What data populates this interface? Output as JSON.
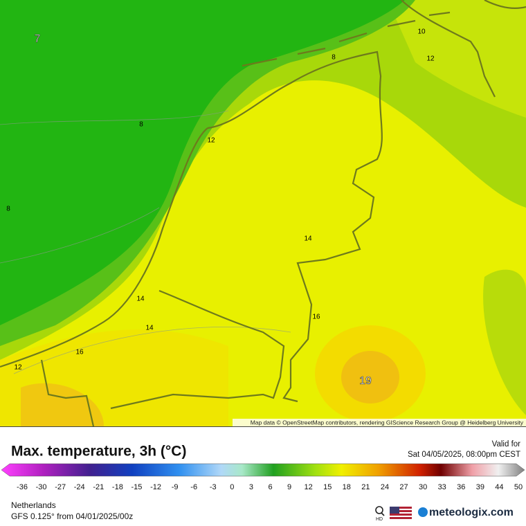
{
  "map": {
    "contour_labels": [
      "7",
      "8",
      "8",
      "8",
      "10",
      "12",
      "12",
      "12",
      "14",
      "14",
      "14",
      "16",
      "16",
      "19"
    ],
    "attribution": "Map data © OpenStreetMap contributors, rendering GIScience Research Group @ Heidelberg University"
  },
  "header": {
    "title": "Max. temperature, 3h (°C)",
    "valid_label": "Valid for",
    "valid_time": "Sat 04/05/2025, 08:00pm CEST"
  },
  "colorbar": {
    "ticks": [
      "-36",
      "-30",
      "-27",
      "-24",
      "-21",
      "-18",
      "-15",
      "-12",
      "-9",
      "-6",
      "-3",
      "0",
      "3",
      "6",
      "9",
      "12",
      "15",
      "18",
      "21",
      "24",
      "27",
      "30",
      "33",
      "36",
      "39",
      "44",
      "50"
    ]
  },
  "footer": {
    "region": "Netherlands",
    "model": "GFS 0.125° from  04/01/2025/00z",
    "brand": "meteologix.com",
    "hd": "HD"
  }
}
